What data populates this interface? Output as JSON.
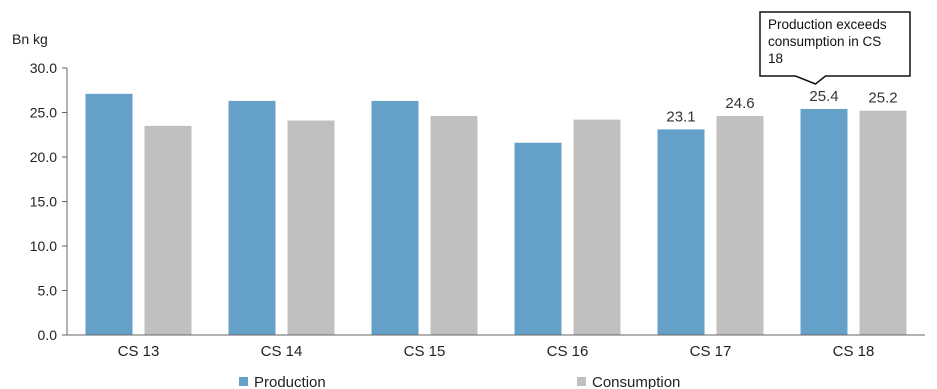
{
  "chart_data": {
    "type": "bar",
    "unit_label": "Bn kg",
    "categories": [
      "CS 13",
      "CS 14",
      "CS 15",
      "CS 16",
      "CS 17",
      "CS 18"
    ],
    "series": [
      {
        "name": "Production",
        "color": "#65a0c9",
        "values": [
          27.1,
          26.3,
          26.3,
          21.6,
          23.1,
          25.4
        ],
        "labels": [
          null,
          null,
          null,
          null,
          "23.1",
          "25.4"
        ]
      },
      {
        "name": "Consumption",
        "color": "#bfbfbf",
        "values": [
          23.5,
          24.1,
          24.6,
          24.2,
          24.6,
          25.2
        ],
        "labels": [
          null,
          null,
          null,
          null,
          "24.6",
          "25.2"
        ]
      }
    ],
    "ylim": [
      0,
      30
    ],
    "yticks": [
      0,
      5,
      10,
      15,
      20,
      25,
      30
    ],
    "ytick_labels": [
      "0.0",
      "5.0",
      "10.0",
      "15.0",
      "20.0",
      "25.0",
      "30.0"
    ],
    "legend_position": "bottom",
    "annotation": {
      "lines": [
        "Production exceeds",
        "consumption in CS",
        "18"
      ],
      "target_category": "CS 18"
    }
  }
}
